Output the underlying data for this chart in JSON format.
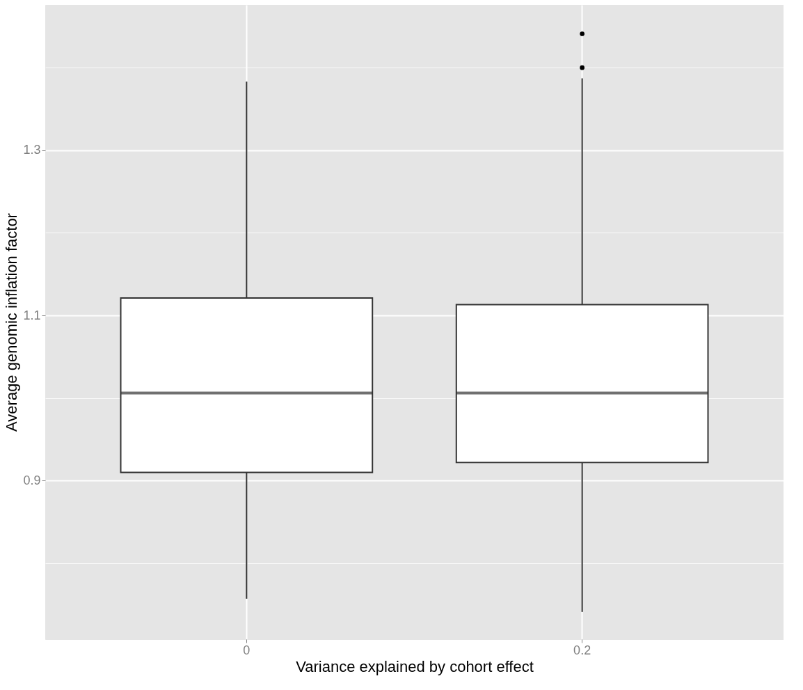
{
  "chart_data": {
    "type": "box",
    "xlabel": "Variance explained by cohort effect",
    "ylabel": "Average genomic inflation factor",
    "categories": [
      "0",
      "0.2"
    ],
    "boxes": [
      {
        "low": 0.757,
        "q1": 0.91,
        "median": 1.006,
        "q3": 1.121,
        "high": 1.383
      },
      {
        "low": 0.741,
        "q1": 0.922,
        "median": 1.006,
        "q3": 1.113,
        "high": 1.387,
        "outliers": [
          1.441,
          1.4
        ]
      }
    ],
    "ylim": [
      0.708,
      1.476
    ],
    "yticks": [
      {
        "value": 0.8,
        "label": null
      },
      0.9,
      {
        "value": 1.0,
        "label": null
      },
      1.1,
      {
        "value": 1.2,
        "label": null
      },
      1.3,
      {
        "value": 1.4,
        "label": null
      }
    ],
    "grid": true
  }
}
